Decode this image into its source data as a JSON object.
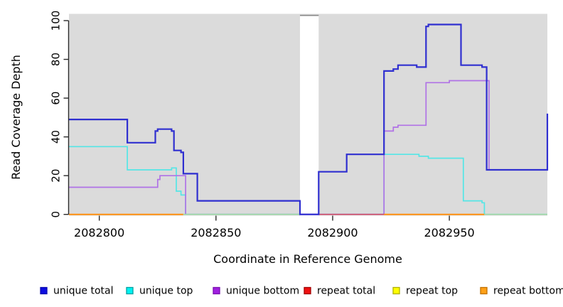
{
  "figure": {
    "xlabel": "Coordinate in Reference Genome",
    "ylabel": "Read Coverage Depth"
  },
  "chart_data": {
    "type": "line",
    "subtype": "step",
    "title": "",
    "xlabel": "Coordinate in Reference Genome",
    "ylabel": "Read Coverage Depth",
    "xlim": [
      2082787,
      2082992
    ],
    "ylim": [
      0,
      100
    ],
    "x_ticks": [
      2082800,
      2082850,
      2082900,
      2082950
    ],
    "y_ticks": [
      0,
      20,
      40,
      60,
      80,
      100
    ],
    "grid": false,
    "legend_position": "bottom",
    "panel_bg": "#dbdbdb",
    "axis_color": "#2b2b2b",
    "masked_region": {
      "start": 2082886,
      "end": 2082894,
      "fill": "#ffffff",
      "cap_color": "#8a8a8a",
      "baseline_color": "#6a55e0"
    },
    "series": [
      {
        "name": "unique total",
        "color": "#2f2fd0",
        "width": 2.2,
        "end": 2082992,
        "points": [
          [
            2082787,
            49
          ],
          [
            2082812,
            37
          ],
          [
            2082824,
            43
          ],
          [
            2082825,
            44
          ],
          [
            2082831,
            43
          ],
          [
            2082832,
            33
          ],
          [
            2082835,
            32
          ],
          [
            2082836,
            21
          ],
          [
            2082842,
            7
          ],
          [
            2082886,
            0
          ],
          [
            2082894,
            22
          ],
          [
            2082906,
            31
          ],
          [
            2082922,
            74
          ],
          [
            2082926,
            75
          ],
          [
            2082928,
            77
          ],
          [
            2082936,
            76
          ],
          [
            2082940,
            97
          ],
          [
            2082941,
            98
          ],
          [
            2082955,
            77
          ],
          [
            2082964,
            76
          ],
          [
            2082966,
            23
          ],
          [
            2082992,
            52
          ]
        ]
      },
      {
        "name": "unique top",
        "color": "#55e6e6",
        "width": 1.7,
        "end": 2082992,
        "points": [
          [
            2082787,
            35
          ],
          [
            2082812,
            23
          ],
          [
            2082831,
            24
          ],
          [
            2082833,
            12
          ],
          [
            2082835,
            10
          ],
          [
            2082837,
            0
          ],
          [
            2082922,
            31
          ],
          [
            2082937,
            30
          ],
          [
            2082941,
            29
          ],
          [
            2082956,
            7
          ],
          [
            2082964,
            6
          ],
          [
            2082965,
            0
          ]
        ]
      },
      {
        "name": "unique bottom",
        "color": "#b072e6",
        "width": 1.7,
        "end": 2082992,
        "points": [
          [
            2082787,
            14
          ],
          [
            2082825,
            18
          ],
          [
            2082826,
            20
          ],
          [
            2082837,
            0
          ],
          [
            2082922,
            43
          ],
          [
            2082926,
            45
          ],
          [
            2082928,
            46
          ],
          [
            2082940,
            68
          ],
          [
            2082950,
            69
          ],
          [
            2082967,
            23
          ]
        ]
      }
    ],
    "baseline_segments": [
      {
        "name": "repeat bottom",
        "color": "#ff8f0e",
        "width": 2.0,
        "from": 2082787,
        "to": 2082836,
        "value": 0
      },
      {
        "name": "repeat top over unique top",
        "color": "#9bd7a4",
        "width": 1.7,
        "from": 2082836,
        "to": 2082886,
        "value": 0
      },
      {
        "name": "repeat total",
        "color": "#cc4666",
        "width": 1.7,
        "from": 2082894,
        "to": 2082922,
        "value": 0
      },
      {
        "name": "repeat bottom",
        "color": "#ff8f0e",
        "width": 2.0,
        "from": 2082922,
        "to": 2082965,
        "value": 0
      },
      {
        "name": "repeat top over unique top",
        "color": "#9bd7a4",
        "width": 1.7,
        "from": 2082965,
        "to": 2082992,
        "value": 0
      }
    ],
    "legend": [
      {
        "label": "unique total",
        "fill": "#0d0de0",
        "border": "#0909b0"
      },
      {
        "label": "unique top",
        "fill": "#00f2f2",
        "border": "#00a0a0"
      },
      {
        "label": "unique bottom",
        "fill": "#a020e0",
        "border": "#7a10b0"
      },
      {
        "label": "repeat total",
        "fill": "#f01010",
        "border": "#a00000"
      },
      {
        "label": "repeat top",
        "fill": "#ffff00",
        "border": "#b0b000"
      },
      {
        "label": "repeat bottom",
        "fill": "#ffa018",
        "border": "#c07000"
      }
    ]
  }
}
